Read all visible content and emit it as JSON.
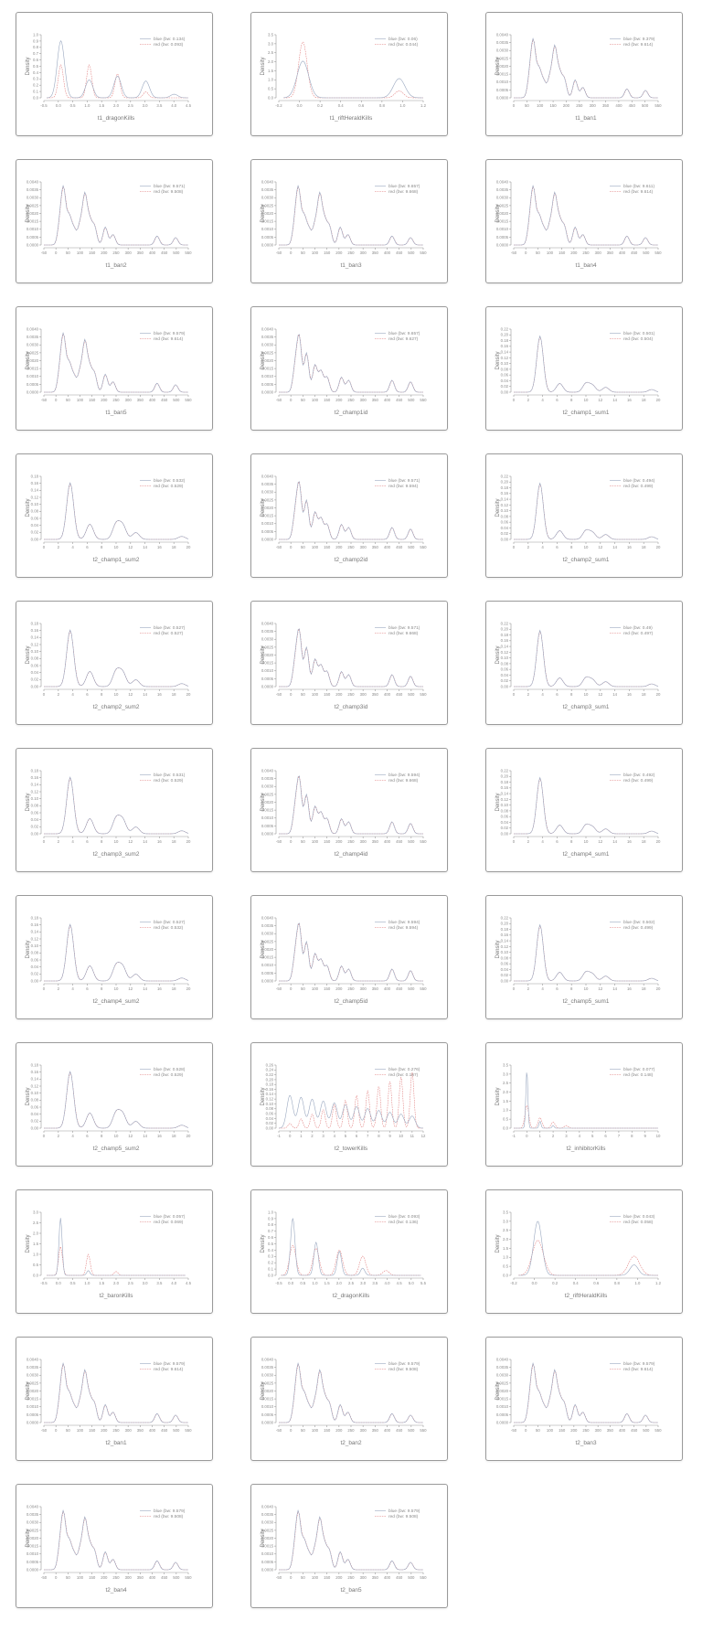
{
  "colors": {
    "blue": "#9aa8c0",
    "red": "#e07a7a",
    "axis": "#9a9a9a",
    "text": "#8a8a8a"
  },
  "charts": [
    {
      "xlabel": "t1_dragonKills",
      "ylabel": "Density",
      "legend": [
        "blue (bw: 0.134)",
        "red (bw: 0.093)"
      ],
      "xticks": [
        "-0.5",
        "0.0",
        "0.5",
        "1.0",
        "1.5",
        "2.0",
        "2.5",
        "3.0",
        "3.5",
        "4.0",
        "4.5"
      ],
      "yticks": [
        "0.0",
        "0.1",
        "0.2",
        "0.3",
        "0.4",
        "0.5",
        "0.6",
        "0.7",
        "0.8",
        "0.9",
        "1.0"
      ]
    },
    {
      "xlabel": "t1_riftHeraldKills",
      "ylabel": "Density",
      "legend": [
        "blue (bw: 0.06)",
        "red (bw: 0.044)"
      ],
      "xticks": [
        "-0.2",
        "0.0",
        "0.2",
        "0.4",
        "0.6",
        "0.8",
        "1.0",
        "1.2"
      ],
      "yticks": [
        "0.0",
        "0.5",
        "1.0",
        "1.5",
        "2.0",
        "2.5",
        "3.0",
        "3.5"
      ]
    },
    {
      "xlabel": "t1_ban1",
      "ylabel": "Density",
      "legend": [
        "blue (bw: 9.379)",
        "red (bw: 9.614)"
      ],
      "xticks": [
        "0",
        "50",
        "100",
        "150",
        "200",
        "250",
        "300",
        "350",
        "400",
        "450",
        "500",
        "550"
      ],
      "yticks": [
        "0.0000",
        "0.0005",
        "0.0010",
        "0.0015",
        "0.0020",
        "0.0025",
        "0.0030",
        "0.0035",
        "0.0040"
      ]
    },
    {
      "xlabel": "t1_ban2",
      "ylabel": "Density",
      "legend": [
        "blue (bw: 9.571)",
        "red (bw: 9.508)"
      ],
      "xticks": [
        "-50",
        "0",
        "50",
        "100",
        "150",
        "200",
        "250",
        "300",
        "350",
        "400",
        "450",
        "500",
        "550"
      ],
      "yticks": [
        "0.0000",
        "0.0005",
        "0.0010",
        "0.0015",
        "0.0020",
        "0.0025",
        "0.0030",
        "0.0035",
        "0.0040"
      ]
    },
    {
      "xlabel": "t1_ban3",
      "ylabel": "Density",
      "legend": [
        "blue (bw: 9.657)",
        "red (bw: 9.668)"
      ],
      "xticks": [
        "-50",
        "0",
        "50",
        "100",
        "150",
        "200",
        "250",
        "300",
        "350",
        "400",
        "450",
        "500",
        "550"
      ],
      "yticks": [
        "0.0000",
        "0.0005",
        "0.0010",
        "0.0015",
        "0.0020",
        "0.0025",
        "0.0030",
        "0.0035",
        "0.0040"
      ]
    },
    {
      "xlabel": "t1_ban4",
      "ylabel": "Density",
      "legend": [
        "blue (bw: 9.611)",
        "red (bw: 9.614)"
      ],
      "xticks": [
        "-50",
        "0",
        "50",
        "100",
        "150",
        "200",
        "250",
        "300",
        "350",
        "400",
        "450",
        "500",
        "550"
      ],
      "yticks": [
        "0.0000",
        "0.0005",
        "0.0010",
        "0.0015",
        "0.0020",
        "0.0025",
        "0.0030",
        "0.0035",
        "0.0040"
      ]
    },
    {
      "xlabel": "t1_ban5",
      "ylabel": "Density",
      "legend": [
        "blue (bw: 9.579)",
        "red (bw: 9.614)"
      ],
      "xticks": [
        "-50",
        "0",
        "50",
        "100",
        "150",
        "200",
        "250",
        "300",
        "350",
        "400",
        "450",
        "500",
        "550"
      ],
      "yticks": [
        "0.0000",
        "0.0005",
        "0.0010",
        "0.0015",
        "0.0020",
        "0.0025",
        "0.0030",
        "0.0035",
        "0.0040"
      ]
    },
    {
      "xlabel": "t2_champ1id",
      "ylabel": "Density",
      "legend": [
        "blue (bw: 9.657)",
        "red (bw: 9.627)"
      ],
      "xticks": [
        "-50",
        "0",
        "50",
        "100",
        "150",
        "200",
        "250",
        "300",
        "350",
        "400",
        "450",
        "500",
        "550"
      ],
      "yticks": [
        "0.0000",
        "0.0005",
        "0.0010",
        "0.0015",
        "0.0020",
        "0.0025",
        "0.0030",
        "0.0035",
        "0.0040"
      ]
    },
    {
      "xlabel": "t2_champ1_sum1",
      "ylabel": "Density",
      "legend": [
        "blue (bw: 0.501)",
        "red (bw: 0.504)"
      ],
      "xticks": [
        "0",
        "2",
        "4",
        "6",
        "8",
        "10",
        "12",
        "14",
        "16",
        "18",
        "20"
      ],
      "yticks": [
        "0.00",
        "0.02",
        "0.04",
        "0.06",
        "0.08",
        "0.10",
        "0.12",
        "0.14",
        "0.16",
        "0.18",
        "0.20",
        "0.22"
      ]
    },
    {
      "xlabel": "t2_champ1_sum2",
      "ylabel": "Density",
      "legend": [
        "blue (bw: 0.532)",
        "red (bw: 0.529)"
      ],
      "xticks": [
        "0",
        "2",
        "4",
        "6",
        "8",
        "10",
        "12",
        "14",
        "16",
        "18",
        "20"
      ],
      "yticks": [
        "0.00",
        "0.02",
        "0.04",
        "0.06",
        "0.08",
        "0.10",
        "0.12",
        "0.14",
        "0.16",
        "0.18"
      ]
    },
    {
      "xlabel": "t2_champ2id",
      "ylabel": "Density",
      "legend": [
        "blue (bw: 9.571)",
        "red (bw: 9.594)"
      ],
      "xticks": [
        "-50",
        "0",
        "50",
        "100",
        "150",
        "200",
        "250",
        "300",
        "350",
        "400",
        "450",
        "500",
        "550"
      ],
      "yticks": [
        "0.0000",
        "0.0005",
        "0.0010",
        "0.0015",
        "0.0020",
        "0.0025",
        "0.0030",
        "0.0035",
        "0.0040"
      ]
    },
    {
      "xlabel": "t2_champ2_sum1",
      "ylabel": "Density",
      "legend": [
        "blue (bw: 0.494)",
        "red (bw: 0.499)"
      ],
      "xticks": [
        "0",
        "2",
        "4",
        "6",
        "8",
        "10",
        "12",
        "14",
        "16",
        "18",
        "20"
      ],
      "yticks": [
        "0.00",
        "0.02",
        "0.04",
        "0.06",
        "0.08",
        "0.10",
        "0.12",
        "0.14",
        "0.16",
        "0.18",
        "0.20",
        "0.22"
      ]
    },
    {
      "xlabel": "t2_champ2_sum2",
      "ylabel": "Density",
      "legend": [
        "blue (bw: 0.527)",
        "red (bw: 0.527)"
      ],
      "xticks": [
        "0",
        "2",
        "4",
        "6",
        "8",
        "10",
        "12",
        "14",
        "16",
        "18",
        "20"
      ],
      "yticks": [
        "0.00",
        "0.02",
        "0.04",
        "0.06",
        "0.08",
        "0.10",
        "0.12",
        "0.14",
        "0.16",
        "0.18"
      ]
    },
    {
      "xlabel": "t2_champ3id",
      "ylabel": "Density",
      "legend": [
        "blue (bw: 9.571)",
        "red (bw: 9.668)"
      ],
      "xticks": [
        "-50",
        "0",
        "50",
        "100",
        "150",
        "200",
        "250",
        "300",
        "350",
        "400",
        "450",
        "500",
        "550"
      ],
      "yticks": [
        "0.0000",
        "0.0005",
        "0.0010",
        "0.0015",
        "0.0020",
        "0.0025",
        "0.0030",
        "0.0035",
        "0.0040"
      ]
    },
    {
      "xlabel": "t2_champ3_sum1",
      "ylabel": "Density",
      "legend": [
        "blue (bw: 0.49)",
        "red (bw: 0.497)"
      ],
      "xticks": [
        "0",
        "2",
        "4",
        "6",
        "8",
        "10",
        "12",
        "14",
        "16",
        "18",
        "20"
      ],
      "yticks": [
        "0.00",
        "0.02",
        "0.04",
        "0.06",
        "0.08",
        "0.10",
        "0.12",
        "0.14",
        "0.16",
        "0.18",
        "0.20",
        "0.22"
      ]
    },
    {
      "xlabel": "t2_champ3_sum2",
      "ylabel": "Density",
      "legend": [
        "blue (bw: 0.531)",
        "red (bw: 0.529)"
      ],
      "xticks": [
        "0",
        "2",
        "4",
        "6",
        "8",
        "10",
        "12",
        "14",
        "16",
        "18",
        "20"
      ],
      "yticks": [
        "0.00",
        "0.02",
        "0.04",
        "0.06",
        "0.08",
        "0.10",
        "0.12",
        "0.14",
        "0.16",
        "0.18"
      ]
    },
    {
      "xlabel": "t2_champ4id",
      "ylabel": "Density",
      "legend": [
        "blue (bw: 9.594)",
        "red (bw: 9.668)"
      ],
      "xticks": [
        "-50",
        "0",
        "50",
        "100",
        "150",
        "200",
        "250",
        "300",
        "350",
        "400",
        "450",
        "500",
        "550"
      ],
      "yticks": [
        "0.0000",
        "0.0005",
        "0.0010",
        "0.0015",
        "0.0020",
        "0.0025",
        "0.0030",
        "0.0035",
        "0.0040"
      ]
    },
    {
      "xlabel": "t2_champ4_sum1",
      "ylabel": "Density",
      "legend": [
        "blue (bw: 0.492)",
        "red (bw: 0.499)"
      ],
      "xticks": [
        "0",
        "2",
        "4",
        "6",
        "8",
        "10",
        "12",
        "14",
        "16",
        "18",
        "20"
      ],
      "yticks": [
        "0.00",
        "0.02",
        "0.04",
        "0.06",
        "0.08",
        "0.10",
        "0.12",
        "0.14",
        "0.16",
        "0.18",
        "0.20",
        "0.22"
      ]
    },
    {
      "xlabel": "t2_champ4_sum2",
      "ylabel": "Density",
      "legend": [
        "blue (bw: 0.527)",
        "red (bw: 0.532)"
      ],
      "xticks": [
        "0",
        "2",
        "4",
        "6",
        "8",
        "10",
        "12",
        "14",
        "16",
        "18",
        "20"
      ],
      "yticks": [
        "0.00",
        "0.02",
        "0.04",
        "0.06",
        "0.08",
        "0.10",
        "0.12",
        "0.14",
        "0.16",
        "0.18"
      ]
    },
    {
      "xlabel": "t2_champ5id",
      "ylabel": "Density",
      "legend": [
        "blue (bw: 9.594)",
        "red (bw: 9.594)"
      ],
      "xticks": [
        "-50",
        "0",
        "50",
        "100",
        "150",
        "200",
        "250",
        "300",
        "350",
        "400",
        "450",
        "500",
        "550"
      ],
      "yticks": [
        "0.0000",
        "0.0005",
        "0.0010",
        "0.0015",
        "0.0020",
        "0.0025",
        "0.0030",
        "0.0035",
        "0.0040"
      ]
    },
    {
      "xlabel": "t2_champ5_sum1",
      "ylabel": "Density",
      "legend": [
        "blue (bw: 0.502)",
        "red (bw: 0.499)"
      ],
      "xticks": [
        "0",
        "2",
        "4",
        "6",
        "8",
        "10",
        "12",
        "14",
        "16",
        "18",
        "20"
      ],
      "yticks": [
        "0.00",
        "0.02",
        "0.04",
        "0.06",
        "0.08",
        "0.10",
        "0.12",
        "0.14",
        "0.16",
        "0.18",
        "0.20",
        "0.22"
      ]
    },
    {
      "xlabel": "t2_champ5_sum2",
      "ylabel": "Density",
      "legend": [
        "blue (bw: 0.528)",
        "red (bw: 0.529)"
      ],
      "xticks": [
        "0",
        "2",
        "4",
        "6",
        "8",
        "10",
        "12",
        "14",
        "16",
        "18",
        "20"
      ],
      "yticks": [
        "0.00",
        "0.02",
        "0.04",
        "0.06",
        "0.08",
        "0.10",
        "0.12",
        "0.14",
        "0.16",
        "0.18"
      ]
    },
    {
      "xlabel": "t2_towerKills",
      "ylabel": "Density",
      "legend": [
        "blue (bw: 0.276)",
        "red (bw: 0.167)"
      ],
      "xticks": [
        "-1",
        "0",
        "1",
        "2",
        "3",
        "4",
        "5",
        "6",
        "7",
        "8",
        "9",
        "10",
        "11",
        "12"
      ],
      "yticks": [
        "0.00",
        "0.02",
        "0.04",
        "0.06",
        "0.08",
        "0.10",
        "0.12",
        "0.14",
        "0.16",
        "0.18",
        "0.20",
        "0.22",
        "0.24",
        "0.26"
      ]
    },
    {
      "xlabel": "t2_inhibitorKills",
      "ylabel": "Density",
      "legend": [
        "blue (bw: 0.077)",
        "red (bw: 0.148)"
      ],
      "xticks": [
        "-1",
        "0",
        "1",
        "2",
        "3",
        "4",
        "5",
        "6",
        "7",
        "8",
        "9",
        "10"
      ],
      "yticks": [
        "0.0",
        "0.5",
        "1.0",
        "1.5",
        "2.0",
        "2.5",
        "3.0",
        "3.5"
      ]
    },
    {
      "xlabel": "t2_baronKills",
      "ylabel": "Density",
      "legend": [
        "blue (bw: 0.057)",
        "red (bw: 0.069)"
      ],
      "xticks": [
        "-0.5",
        "0.0",
        "0.5",
        "1.0",
        "1.5",
        "2.0",
        "2.5",
        "3.0",
        "3.5",
        "4.0",
        "4.5"
      ],
      "yticks": [
        "0.0",
        "0.5",
        "1.0",
        "1.5",
        "2.0",
        "2.5",
        "3.0"
      ]
    },
    {
      "xlabel": "t2_dragonKills",
      "ylabel": "Density",
      "legend": [
        "blue (bw: 0.093)",
        "red (bw: 0.136)"
      ],
      "xticks": [
        "-0.5",
        "0.0",
        "0.5",
        "1.0",
        "1.5",
        "2.0",
        "2.5",
        "3.0",
        "3.5",
        "4.0",
        "4.5",
        "5.0",
        "5.5"
      ],
      "yticks": [
        "0.0",
        "0.1",
        "0.2",
        "0.3",
        "0.4",
        "0.5",
        "0.6",
        "0.7",
        "0.8",
        "0.9",
        "1.0"
      ]
    },
    {
      "xlabel": "t2_riftHeraldKills",
      "ylabel": "Density",
      "legend": [
        "blue (bw: 0.043)",
        "red (bw: 0.058)"
      ],
      "xticks": [
        "-0.2",
        "0.0",
        "0.2",
        "0.4",
        "0.6",
        "0.8",
        "1.0",
        "1.2"
      ],
      "yticks": [
        "0.0",
        "0.5",
        "1.0",
        "1.5",
        "2.0",
        "2.5",
        "3.0",
        "3.5"
      ]
    },
    {
      "xlabel": "t2_ban1",
      "ylabel": "Density",
      "legend": [
        "blue (bw: 9.579)",
        "red (bw: 9.614)"
      ],
      "xticks": [
        "-50",
        "0",
        "50",
        "100",
        "150",
        "200",
        "250",
        "300",
        "350",
        "400",
        "450",
        "500",
        "550"
      ],
      "yticks": [
        "0.0000",
        "0.0005",
        "0.0010",
        "0.0015",
        "0.0020",
        "0.0025",
        "0.0030",
        "0.0035",
        "0.0040"
      ]
    },
    {
      "xlabel": "t2_ban2",
      "ylabel": "Density",
      "legend": [
        "blue (bw: 9.579)",
        "red (bw: 9.508)"
      ],
      "xticks": [
        "-50",
        "0",
        "50",
        "100",
        "150",
        "200",
        "250",
        "300",
        "350",
        "400",
        "450",
        "500",
        "550"
      ],
      "yticks": [
        "0.0000",
        "0.0005",
        "0.0010",
        "0.0015",
        "0.0020",
        "0.0025",
        "0.0030",
        "0.0035",
        "0.0040"
      ]
    },
    {
      "xlabel": "t2_ban3",
      "ylabel": "Density",
      "legend": [
        "blue (bw: 9.579)",
        "red (bw: 9.614)"
      ],
      "xticks": [
        "-50",
        "0",
        "50",
        "100",
        "150",
        "200",
        "250",
        "300",
        "350",
        "400",
        "450",
        "500",
        "550"
      ],
      "yticks": [
        "0.0000",
        "0.0005",
        "0.0010",
        "0.0015",
        "0.0020",
        "0.0025",
        "0.0030",
        "0.0035",
        "0.0040"
      ]
    },
    {
      "xlabel": "t2_ban4",
      "ylabel": "Density",
      "legend": [
        "blue (bw: 9.579)",
        "red (bw: 9.508)"
      ],
      "xticks": [
        "-50",
        "0",
        "50",
        "100",
        "150",
        "200",
        "250",
        "300",
        "350",
        "400",
        "450",
        "500",
        "550"
      ],
      "yticks": [
        "0.0000",
        "0.0005",
        "0.0010",
        "0.0015",
        "0.0020",
        "0.0025",
        "0.0030",
        "0.0035",
        "0.0040"
      ]
    },
    {
      "xlabel": "t2_ban5",
      "ylabel": "Density",
      "legend": [
        "blue (bw: 9.579)",
        "red (bw: 9.508)"
      ],
      "xticks": [
        "-50",
        "0",
        "50",
        "100",
        "150",
        "200",
        "250",
        "300",
        "350",
        "400",
        "450",
        "500",
        "550"
      ],
      "yticks": [
        "0.0000",
        "0.0005",
        "0.0010",
        "0.0015",
        "0.0020",
        "0.0025",
        "0.0030",
        "0.0035",
        "0.0040"
      ]
    }
  ],
  "chart_data": []
}
